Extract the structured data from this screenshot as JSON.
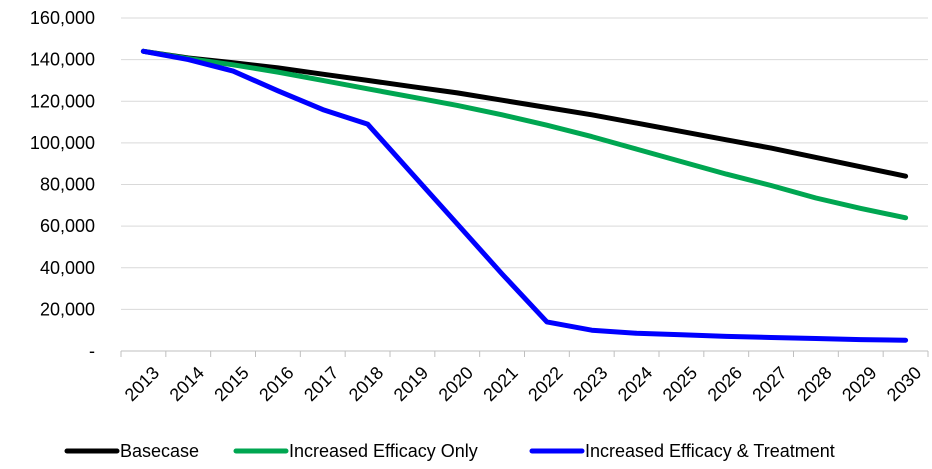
{
  "chart_data": {
    "type": "line",
    "title": "",
    "xlabel": "",
    "ylabel": "",
    "categories": [
      "2013",
      "2014",
      "2015",
      "2016",
      "2017",
      "2018",
      "2019",
      "2020",
      "2021",
      "2022",
      "2023",
      "2024",
      "2025",
      "2026",
      "2027",
      "2028",
      "2029",
      "2030"
    ],
    "series": [
      {
        "name": "Basecase",
        "color": "#000000",
        "values": [
          144000,
          140800,
          138500,
          136000,
          133000,
          130000,
          127000,
          124000,
          120500,
          117000,
          113500,
          109500,
          105500,
          101500,
          97500,
          93000,
          88500,
          84000
        ]
      },
      {
        "name": "Increased Efficacy Only",
        "color": "#00a651",
        "values": [
          144000,
          140500,
          137500,
          134000,
          130000,
          126000,
          122000,
          118000,
          113500,
          108500,
          103000,
          97000,
          91000,
          85000,
          79500,
          73500,
          68500,
          64000
        ]
      },
      {
        "name": "Increased Efficacy & Treatment",
        "color": "#0000ff",
        "values": [
          144000,
          140000,
          134500,
          125000,
          116000,
          109000,
          85000,
          61000,
          37000,
          14000,
          10000,
          8500,
          7800,
          7000,
          6500,
          6000,
          5500,
          5200
        ]
      }
    ],
    "yticks": [
      0,
      20000,
      40000,
      60000,
      80000,
      100000,
      120000,
      140000,
      160000
    ],
    "ytick_labels": [
      "-",
      "20,000",
      "40,000",
      "60,000",
      "80,000",
      "100,000",
      "120,000",
      "140,000",
      "160,000"
    ],
    "ylim": [
      0,
      160000
    ],
    "grid": true,
    "legend_position": "bottom"
  }
}
